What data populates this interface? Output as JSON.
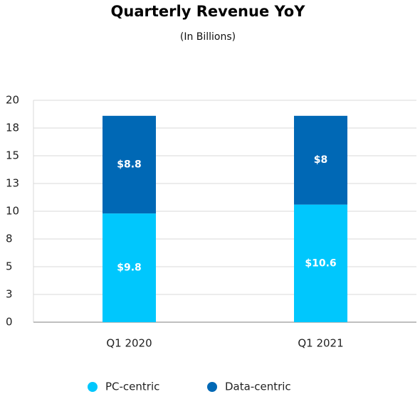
{
  "chart_data": {
    "type": "stacked-bar",
    "title": "Quarterly Revenue YoY",
    "subtitle": "(In Billions)",
    "categories": [
      "Q1 2020",
      "Q1 2021"
    ],
    "series": [
      {
        "name": "PC-centric",
        "color": "#00c7fd",
        "values": [
          9.8,
          10.6
        ],
        "value_labels": [
          "$9.8",
          "$10.6"
        ]
      },
      {
        "name": "Data-centric",
        "color": "#0068b5",
        "values": [
          8.8,
          8
        ],
        "value_labels": [
          "$8.8",
          "$8"
        ]
      }
    ],
    "ylim": [
      0,
      20
    ],
    "yticks": [
      0,
      {
        "value": 2.5,
        "label": "3"
      },
      5,
      {
        "value": 7.5,
        "label": "8"
      },
      10,
      {
        "value": 12.5,
        "label": "13"
      },
      15,
      {
        "value": 17.5,
        "label": "18"
      },
      20
    ],
    "grid": true,
    "legend": "bottom"
  }
}
